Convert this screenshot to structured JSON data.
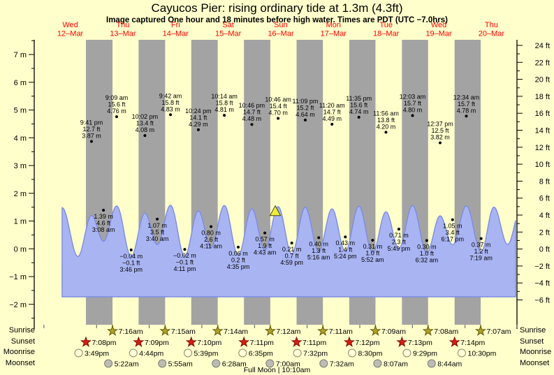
{
  "header": {
    "title": "Cayucos Pier: rising  ordinary tide at 1.3m (4.3ft)",
    "subtitle": "Image captured One hour and 18 minutes before high water. Times are PDT (UTC −7.0hrs)"
  },
  "days": [
    {
      "dow": "Wed",
      "date": "12–Mar"
    },
    {
      "dow": "Thu",
      "date": "13–Mar"
    },
    {
      "dow": "Fri",
      "date": "14–Mar"
    },
    {
      "dow": "Sat",
      "date": "15–Mar"
    },
    {
      "dow": "Sun",
      "date": "16–Mar"
    },
    {
      "dow": "Mon",
      "date": "17–Mar"
    },
    {
      "dow": "Tue",
      "date": "18–Mar"
    },
    {
      "dow": "Wed",
      "date": "19–Mar"
    },
    {
      "dow": "Thu",
      "date": "20–Mar"
    }
  ],
  "axes": {
    "left_labels": [
      {
        "value": 7,
        "label": "7 m"
      },
      {
        "value": 6,
        "label": "6 m"
      },
      {
        "value": 5,
        "label": "5 m"
      },
      {
        "value": 4,
        "label": "4 m"
      },
      {
        "value": 3,
        "label": "3 m"
      },
      {
        "value": 2,
        "label": "2 m"
      },
      {
        "value": 1,
        "label": "1 m"
      },
      {
        "value": 0,
        "label": "0 m"
      },
      {
        "value": -1,
        "label": "−1 m"
      },
      {
        "value": -2,
        "label": "−2 m"
      }
    ],
    "right_labels": [
      {
        "value": 24,
        "label": "24 ft"
      },
      {
        "value": 22,
        "label": "22 ft"
      },
      {
        "value": 20,
        "label": "20 ft"
      },
      {
        "value": 18,
        "label": "18 ft"
      },
      {
        "value": 16,
        "label": "16 ft"
      },
      {
        "value": 14,
        "label": "14 ft"
      },
      {
        "value": 12,
        "label": "12 ft"
      },
      {
        "value": 10,
        "label": "10 ft"
      },
      {
        "value": 8,
        "label": "8 ft"
      },
      {
        "value": 6,
        "label": "6 ft"
      },
      {
        "value": 4,
        "label": "4 ft"
      },
      {
        "value": 2,
        "label": "2 ft"
      },
      {
        "value": 0,
        "label": "0 ft"
      },
      {
        "value": -2,
        "label": "−2 ft"
      },
      {
        "value": -4,
        "label": "−4 ft"
      },
      {
        "value": -6,
        "label": "−6 ft"
      }
    ]
  },
  "chart_data": {
    "type": "area",
    "title": "Cayucos Pier: rising  ordinary tide at 1.3m (4.3ft)",
    "ylabel_left": "meters",
    "ylabel_right": "feet",
    "ylim_left_m": [
      -2,
      7
    ],
    "ylim_right_ft": [
      -6,
      24
    ],
    "x_categories_days": [
      "Wed 12–Mar",
      "Thu 13–Mar",
      "Fri 14–Mar",
      "Sat 15–Mar",
      "Sun 16–Mar",
      "Mon 17–Mar",
      "Tue 18–Mar",
      "Wed 19–Mar",
      "Thu 20–Mar"
    ],
    "highs": [
      {
        "day": 0,
        "time": "9:41 pm",
        "ft": "12.7 ft",
        "m": "3.87 m",
        "height_m": 3.87
      },
      {
        "day": 1,
        "time": "9:09 am",
        "ft": "15.6 ft",
        "m": "4.76 m",
        "height_m": 4.76
      },
      {
        "day": 1,
        "time": "10:02 pm",
        "ft": "13.4 ft",
        "m": "4.08 m",
        "height_m": 4.08
      },
      {
        "day": 2,
        "time": "9:42 am",
        "ft": "15.8 ft",
        "m": "4.83 m",
        "height_m": 4.83
      },
      {
        "day": 2,
        "time": "10:24 pm",
        "ft": "14.1 ft",
        "m": "4.29 m",
        "height_m": 4.29
      },
      {
        "day": 3,
        "time": "10:14 am",
        "ft": "15.8 ft",
        "m": "4.81 m",
        "height_m": 4.81
      },
      {
        "day": 3,
        "time": "10:46 pm",
        "ft": "14.7 ft",
        "m": "4.48 m",
        "height_m": 4.48
      },
      {
        "day": 4,
        "time": "10:46 am",
        "ft": "15.4 ft",
        "m": "4.70 m",
        "height_m": 4.7
      },
      {
        "day": 4,
        "time": "11:09 pm",
        "ft": "15.2 ft",
        "m": "4.64 m",
        "height_m": 4.64
      },
      {
        "day": 5,
        "time": "11:20 am",
        "ft": "14.7 ft",
        "m": "4.49 m",
        "height_m": 4.49
      },
      {
        "day": 5,
        "time": "11:35 pm",
        "ft": "15.6 ft",
        "m": "4.74 m",
        "height_m": 4.74
      },
      {
        "day": 6,
        "time": "11:56 am",
        "ft": "13.8 ft",
        "m": "4.20 m",
        "height_m": 4.2
      },
      {
        "day": 7,
        "time": "12:03 am",
        "ft": "15.7 ft",
        "m": "4.80 m",
        "height_m": 4.8
      },
      {
        "day": 7,
        "time": "12:37 pm",
        "ft": "12.5 ft",
        "m": "3.82 m",
        "height_m": 3.82
      },
      {
        "day": 8,
        "time": "12:34 am",
        "ft": "15.7 ft",
        "m": "4.78 m",
        "height_m": 4.78
      }
    ],
    "lows": [
      {
        "day": 1,
        "time": "3:08 am",
        "m": "1.39 m",
        "ft": "4.6 ft",
        "height_m": 1.39
      },
      {
        "day": 1,
        "time": "3:46 pm",
        "m": "−0.04 m",
        "ft": "−0.1 ft",
        "height_m": -0.04
      },
      {
        "day": 2,
        "time": "3:40 am",
        "m": "1.07 m",
        "ft": "3.5 ft",
        "height_m": 1.07
      },
      {
        "day": 2,
        "time": "4:11 pm",
        "m": "−0.02 m",
        "ft": "−0.1 ft",
        "height_m": -0.02
      },
      {
        "day": 3,
        "time": "4:11 am",
        "m": "0.80 m",
        "ft": "2.6 ft",
        "height_m": 0.8
      },
      {
        "day": 3,
        "time": "4:35 pm",
        "m": "0.06 m",
        "ft": "0.2 ft",
        "height_m": 0.06
      },
      {
        "day": 4,
        "time": "4:43 am",
        "m": "0.57 m",
        "ft": "1.9 ft",
        "height_m": 0.57
      },
      {
        "day": 4,
        "time": "4:59 pm",
        "m": "0.21 m",
        "ft": "0.7 ft",
        "height_m": 0.21
      },
      {
        "day": 5,
        "time": "5:16 am",
        "m": "0.40 m",
        "ft": "1.3 ft",
        "height_m": 0.4
      },
      {
        "day": 5,
        "time": "5:24 pm",
        "m": "0.43 m",
        "ft": "1.4 ft",
        "height_m": 0.43
      },
      {
        "day": 6,
        "time": "5:52 am",
        "m": "0.31 m",
        "ft": "1.0 ft",
        "height_m": 0.31
      },
      {
        "day": 6,
        "time": "5:49 pm",
        "m": "0.71 m",
        "ft": "2.3 ft",
        "height_m": 0.71
      },
      {
        "day": 7,
        "time": "6:32 am",
        "m": "0.30 m",
        "ft": "1.0 ft",
        "height_m": 0.3
      },
      {
        "day": 7,
        "time": "6:17 pm",
        "m": "1.05 m",
        "ft": "3.4 ft",
        "height_m": 1.05
      },
      {
        "day": 8,
        "time": "7:19 am",
        "m": "0.37 m",
        "ft": "1.2 ft",
        "height_m": 0.37
      }
    ],
    "curve_extremes": [
      [
        0.345,
        4.6
      ],
      [
        0.645,
        -0.06
      ],
      [
        0.9035,
        3.87
      ],
      [
        1.1306,
        1.39
      ],
      [
        1.3813,
        4.76
      ],
      [
        1.6569,
        -0.04
      ],
      [
        1.9181,
        4.08
      ],
      [
        2.1528,
        1.07
      ],
      [
        2.4042,
        4.83
      ],
      [
        2.6743,
        -0.02
      ],
      [
        2.9333,
        4.29
      ],
      [
        3.1743,
        0.8
      ],
      [
        3.4264,
        4.81
      ],
      [
        3.691,
        0.06
      ],
      [
        3.9486,
        4.48
      ],
      [
        4.1965,
        0.57
      ],
      [
        4.4486,
        4.7
      ],
      [
        4.7076,
        0.21
      ],
      [
        4.9646,
        4.64
      ],
      [
        5.2194,
        0.4
      ],
      [
        5.4722,
        4.49
      ],
      [
        5.725,
        0.43
      ],
      [
        5.9826,
        4.74
      ],
      [
        6.2444,
        0.31
      ],
      [
        6.4972,
        4.2
      ],
      [
        6.7424,
        0.71
      ],
      [
        7.0021,
        4.8
      ],
      [
        7.2722,
        0.3
      ],
      [
        7.5257,
        3.82
      ],
      [
        7.7618,
        1.05
      ],
      [
        8.0236,
        4.78
      ],
      [
        8.3049,
        0.37
      ],
      [
        8.548,
        4.65
      ],
      [
        8.809,
        1.1
      ],
      [
        9.066,
        4.7
      ]
    ]
  },
  "current_marker": {
    "day": 4,
    "time": "9:28 am"
  },
  "astro": {
    "rows": [
      {
        "label": "Sunrise",
        "icon": "sunrise-star-icon",
        "events": [
          {
            "day": 1,
            "time": "7:16am"
          },
          {
            "day": 2,
            "time": "7:15am"
          },
          {
            "day": 3,
            "time": "7:14am"
          },
          {
            "day": 4,
            "time": "7:12am"
          },
          {
            "day": 5,
            "time": "7:11am"
          },
          {
            "day": 6,
            "time": "7:09am"
          },
          {
            "day": 7,
            "time": "7:08am"
          },
          {
            "day": 8,
            "time": "7:07am"
          }
        ]
      },
      {
        "label": "Sunset",
        "icon": "sunset-star-icon",
        "events": [
          {
            "day": 0,
            "time": "7:08pm"
          },
          {
            "day": 1,
            "time": "7:09pm"
          },
          {
            "day": 2,
            "time": "7:10pm"
          },
          {
            "day": 3,
            "time": "7:11pm"
          },
          {
            "day": 4,
            "time": "7:11pm"
          },
          {
            "day": 5,
            "time": "7:12pm"
          },
          {
            "day": 6,
            "time": "7:13pm"
          },
          {
            "day": 7,
            "time": "7:14pm"
          }
        ]
      },
      {
        "label": "Moonrise",
        "icon": "moonrise-circle-icon",
        "events": [
          {
            "day": 0,
            "time": "3:49pm"
          },
          {
            "day": 1,
            "time": "4:44pm"
          },
          {
            "day": 2,
            "time": "5:39pm"
          },
          {
            "day": 3,
            "time": "6:35pm"
          },
          {
            "day": 4,
            "time": "7:32pm"
          },
          {
            "day": 5,
            "time": "8:30pm"
          },
          {
            "day": 6,
            "time": "9:29pm"
          },
          {
            "day": 7,
            "time": "10:30pm"
          }
        ]
      },
      {
        "label": "Moonset",
        "icon": "moonset-circle-icon",
        "events": [
          {
            "day": 1,
            "time": "5:22am"
          },
          {
            "day": 2,
            "time": "5:55am"
          },
          {
            "day": 3,
            "time": "6:28am"
          },
          {
            "day": 4,
            "time": "7:00am"
          },
          {
            "day": 5,
            "time": "7:32am"
          },
          {
            "day": 6,
            "time": "8:07am"
          },
          {
            "day": 7,
            "time": "8:44am"
          }
        ]
      }
    ],
    "full_moon": "Full Moon | 10:10am"
  },
  "colors": {
    "background": "#ffffcc",
    "night_band": "#a3a3a3",
    "water": "#a9b4f2",
    "water_edge": "#7b8ce6",
    "day_label": "#ff0000",
    "marker_fill": "#ecec3d",
    "sunrise_star": "#b1a12c",
    "sunset_star": "#dd1c10",
    "moonrise_circle": "#ffffd8",
    "moonset_circle": "#bcbcb4"
  }
}
